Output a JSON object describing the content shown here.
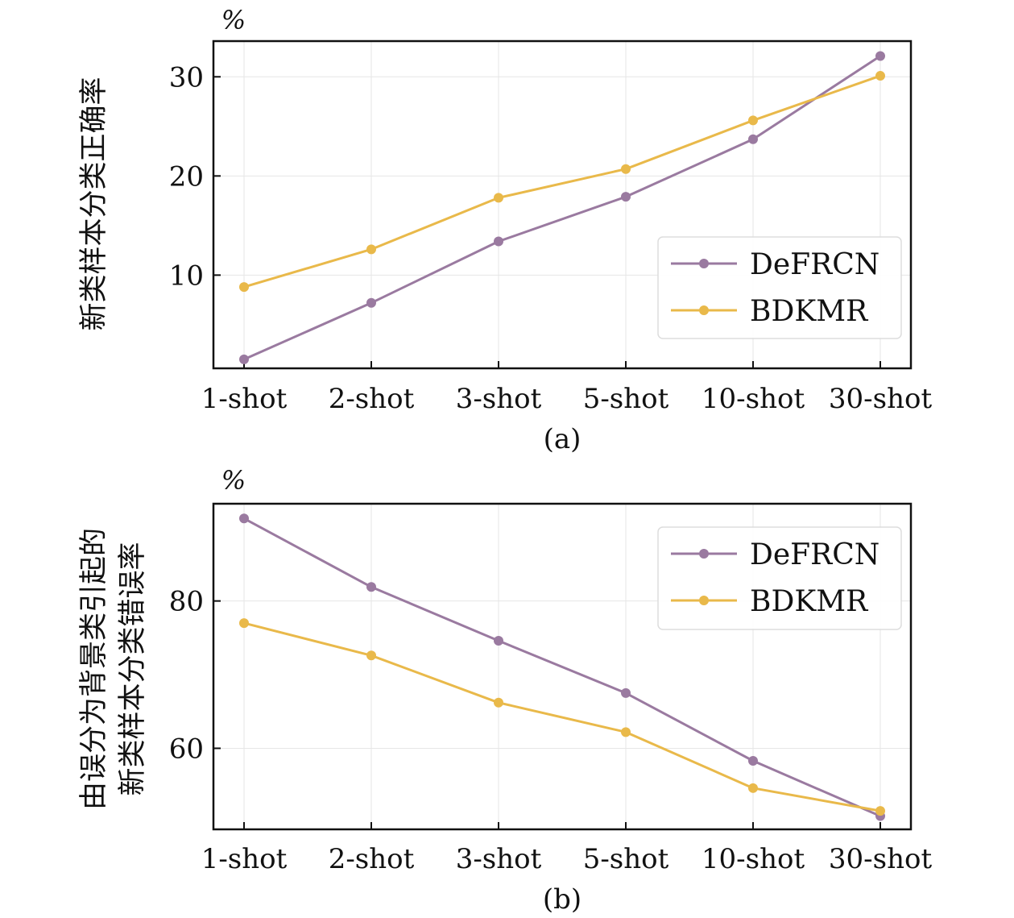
{
  "chart_data": [
    {
      "type": "line",
      "caption": "(a)",
      "unit": "%",
      "ylabel_lines": [
        "新类样本分类正确率"
      ],
      "categories": [
        "1-shot",
        "2-shot",
        "3-shot",
        "5-shot",
        "10-shot",
        "30-shot"
      ],
      "series": [
        {
          "name": "DeFRCN",
          "color": "#9a7aa0",
          "values": [
            1.5,
            7.2,
            13.4,
            17.9,
            23.7,
            32.1
          ]
        },
        {
          "name": "BDKMR",
          "color": "#e9b94a",
          "values": [
            8.8,
            12.6,
            17.8,
            20.7,
            25.6,
            30.1
          ]
        }
      ],
      "ylim": [
        0.6,
        33.6
      ],
      "yticks": [
        10,
        20,
        30
      ],
      "grid": true,
      "legend_position": "lower-right"
    },
    {
      "type": "line",
      "caption": "(b)",
      "unit": "%",
      "ylabel_lines": [
        "由误分为背景类引起的",
        "新类样本分类错误率"
      ],
      "categories": [
        "1-shot",
        "2-shot",
        "3-shot",
        "5-shot",
        "10-shot",
        "30-shot"
      ],
      "series": [
        {
          "name": "DeFRCN",
          "color": "#9a7aa0",
          "values": [
            91.2,
            81.9,
            74.6,
            67.5,
            58.3,
            50.8
          ]
        },
        {
          "name": "BDKMR",
          "color": "#e9b94a",
          "values": [
            77.0,
            72.6,
            66.2,
            62.2,
            54.6,
            51.5
          ]
        }
      ],
      "ylim": [
        49.0,
        93.2
      ],
      "yticks": [
        60,
        80
      ],
      "grid": true,
      "legend_position": "upper-right"
    }
  ]
}
